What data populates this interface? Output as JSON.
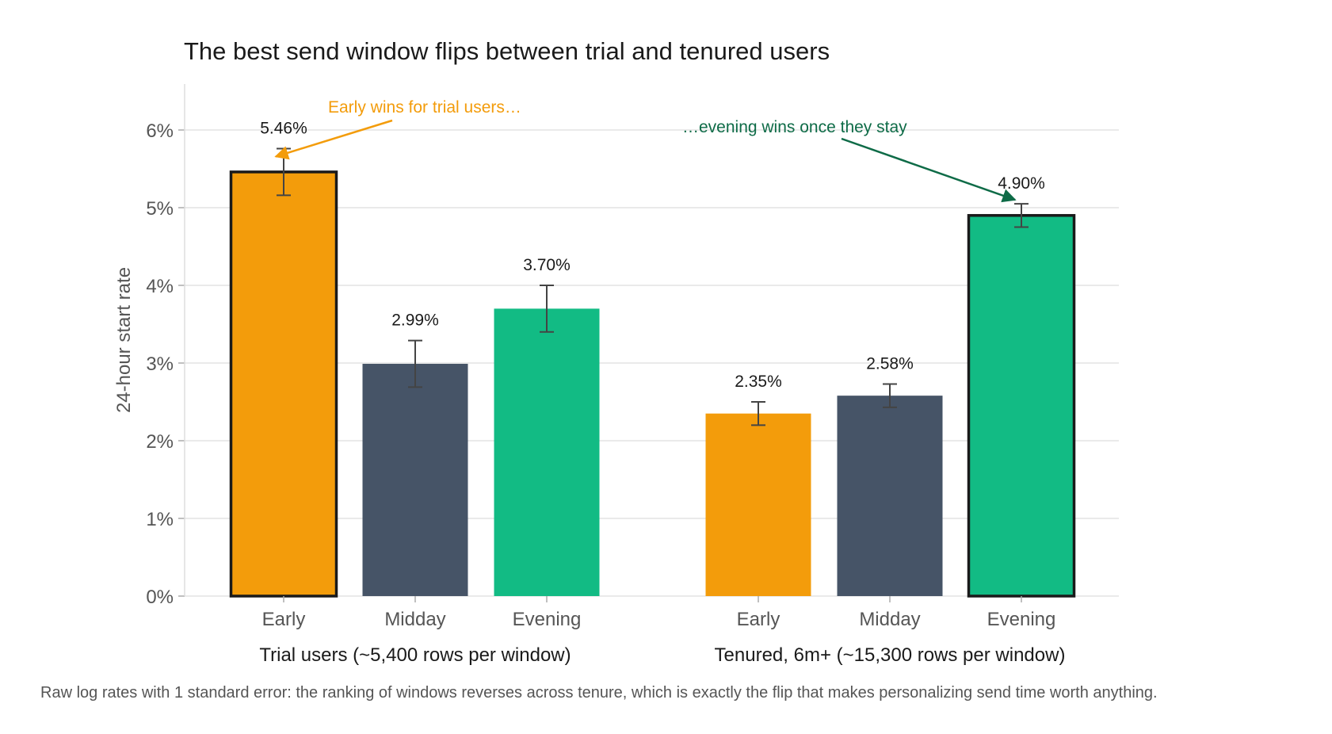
{
  "chart_data": {
    "type": "bar",
    "title": "The best send window flips between trial and tenured users",
    "ylabel": "24-hour start rate",
    "xlabel": "",
    "ylim": [
      0,
      6.6
    ],
    "yticks": [
      "0%",
      "1%",
      "2%",
      "3%",
      "4%",
      "5%",
      "6%"
    ],
    "grid": true,
    "groups": [
      {
        "label": "Trial users  (~5,400 rows per window)",
        "bars": [
          {
            "category": "Early",
            "value": 5.46,
            "label": "5.46%",
            "se": 0.3,
            "color": "#f39c0b",
            "highlight": true
          },
          {
            "category": "Midday",
            "value": 2.99,
            "label": "2.99%",
            "se": 0.3,
            "color": "#465467",
            "highlight": false
          },
          {
            "category": "Evening",
            "value": 3.7,
            "label": "3.70%",
            "se": 0.3,
            "color": "#12bb84",
            "highlight": false
          }
        ]
      },
      {
        "label": "Tenured, 6m+  (~15,300 rows per window)",
        "bars": [
          {
            "category": "Early",
            "value": 2.35,
            "label": "2.35%",
            "se": 0.15,
            "color": "#f39c0b",
            "highlight": false
          },
          {
            "category": "Midday",
            "value": 2.58,
            "label": "2.58%",
            "se": 0.15,
            "color": "#465467",
            "highlight": false
          },
          {
            "category": "Evening",
            "value": 4.9,
            "label": "4.90%",
            "se": 0.15,
            "color": "#12bb84",
            "highlight": true
          }
        ]
      }
    ],
    "annotations": [
      {
        "text": "Early wins for trial users…",
        "color": "#f39c0b",
        "group": 0,
        "bar": 0
      },
      {
        "text": "…evening wins once they stay",
        "color": "#0e6b47",
        "group": 1,
        "bar": 2
      }
    ],
    "caption": "Raw log rates with 1 standard error: the ranking of windows reverses across tenure, which is exactly the flip that makes personalizing send time worth anything."
  }
}
